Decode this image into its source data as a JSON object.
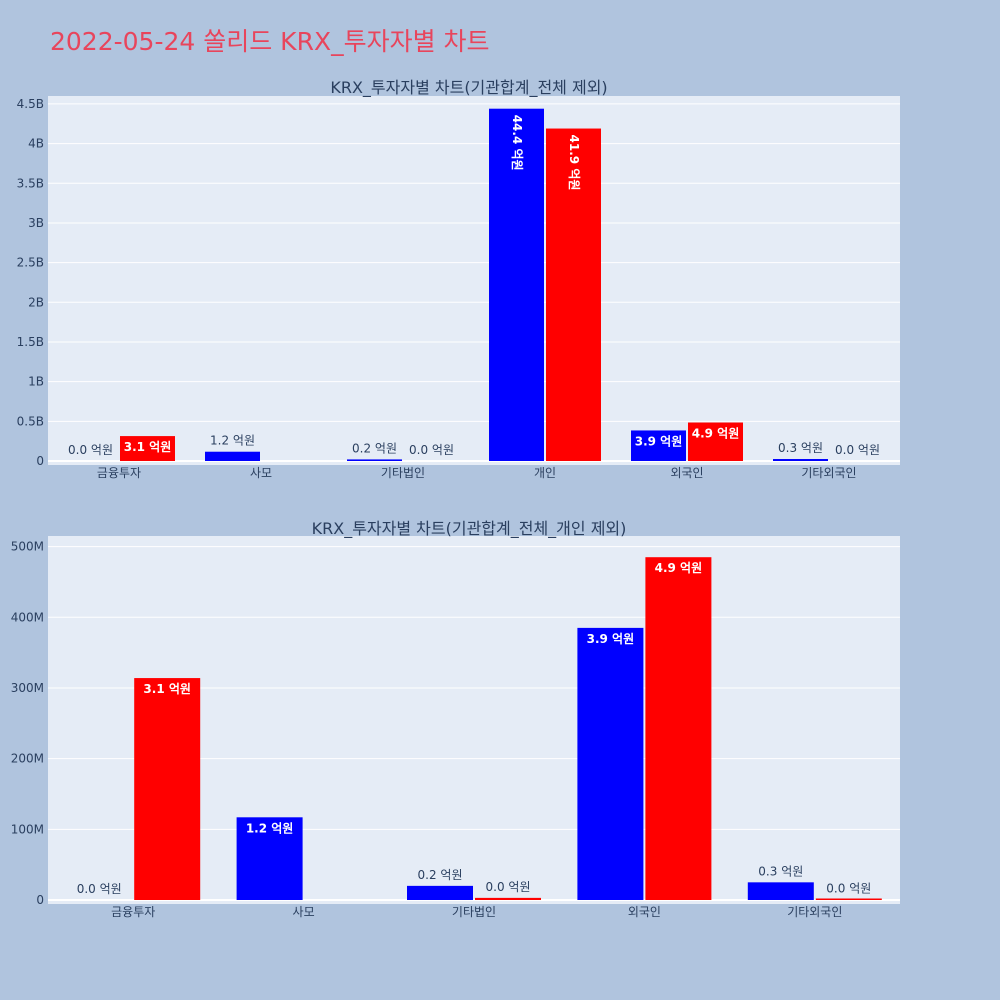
{
  "page": {
    "title": "2022-05-24 쏠리드 KRX_투자자별 차트"
  },
  "colors": {
    "buy": "#0000ff",
    "sell": "#ff0000",
    "background": "#b0c4de",
    "plot_bg": "#e5ecf6",
    "title": "#e8455c"
  },
  "chart_data": [
    {
      "type": "bar",
      "title": "KRX_투자자별 차트(기관합계_전체 제외)",
      "xlabel": "",
      "ylabel": "",
      "categories": [
        "금융투자",
        "사모",
        "기타법인",
        "개인",
        "외국인",
        "기타외국인"
      ],
      "ylim": [
        0,
        4.6
      ],
      "yticks": [
        0,
        0.5,
        1,
        1.5,
        2,
        2.5,
        3,
        3.5,
        4,
        4.5
      ],
      "ytick_labels": [
        "0",
        "0.5B",
        "1B",
        "1.5B",
        "2B",
        "2.5B",
        "3B",
        "3.5B",
        "4B",
        "4.5B"
      ],
      "grid": true,
      "series": [
        {
          "color": "#0000ff",
          "values": [
            0.0,
            0.117,
            0.02,
            4.44,
            0.385,
            0.025
          ],
          "labels": [
            "0.0 억원",
            "1.2 억원",
            "0.2 억원",
            "44.4 억원",
            "3.9 억원",
            "0.3 억원"
          ]
        },
        {
          "color": "#ff0000",
          "values": [
            0.314,
            0.0,
            0.0,
            4.19,
            0.485,
            0.0
          ],
          "labels": [
            "3.1 억원",
            "",
            "0.0 억원",
            "41.9 억원",
            "4.9 억원",
            "0.0 억원"
          ]
        }
      ]
    },
    {
      "type": "bar",
      "title": "KRX_투자자별 차트(기관합계_전체_개인 제외)",
      "xlabel": "",
      "ylabel": "",
      "categories": [
        "금융투자",
        "사모",
        "기타법인",
        "외국인",
        "기타외국인"
      ],
      "ylim": [
        0,
        515
      ],
      "yticks": [
        0,
        100,
        200,
        300,
        400,
        500
      ],
      "ytick_labels": [
        "0",
        "100M",
        "200M",
        "300M",
        "400M",
        "500M"
      ],
      "grid": true,
      "series": [
        {
          "color": "#0000ff",
          "values": [
            0.0,
            117,
            20,
            385,
            25
          ],
          "labels": [
            "0.0 억원",
            "1.2 억원",
            "0.2 억원",
            "3.9 억원",
            "0.3 억원"
          ]
        },
        {
          "color": "#ff0000",
          "values": [
            314,
            0.0,
            3,
            485,
            0.5
          ],
          "labels": [
            "3.1 억원",
            "",
            "0.0 억원",
            "4.9 억원",
            "0.0 억원"
          ]
        }
      ]
    }
  ]
}
